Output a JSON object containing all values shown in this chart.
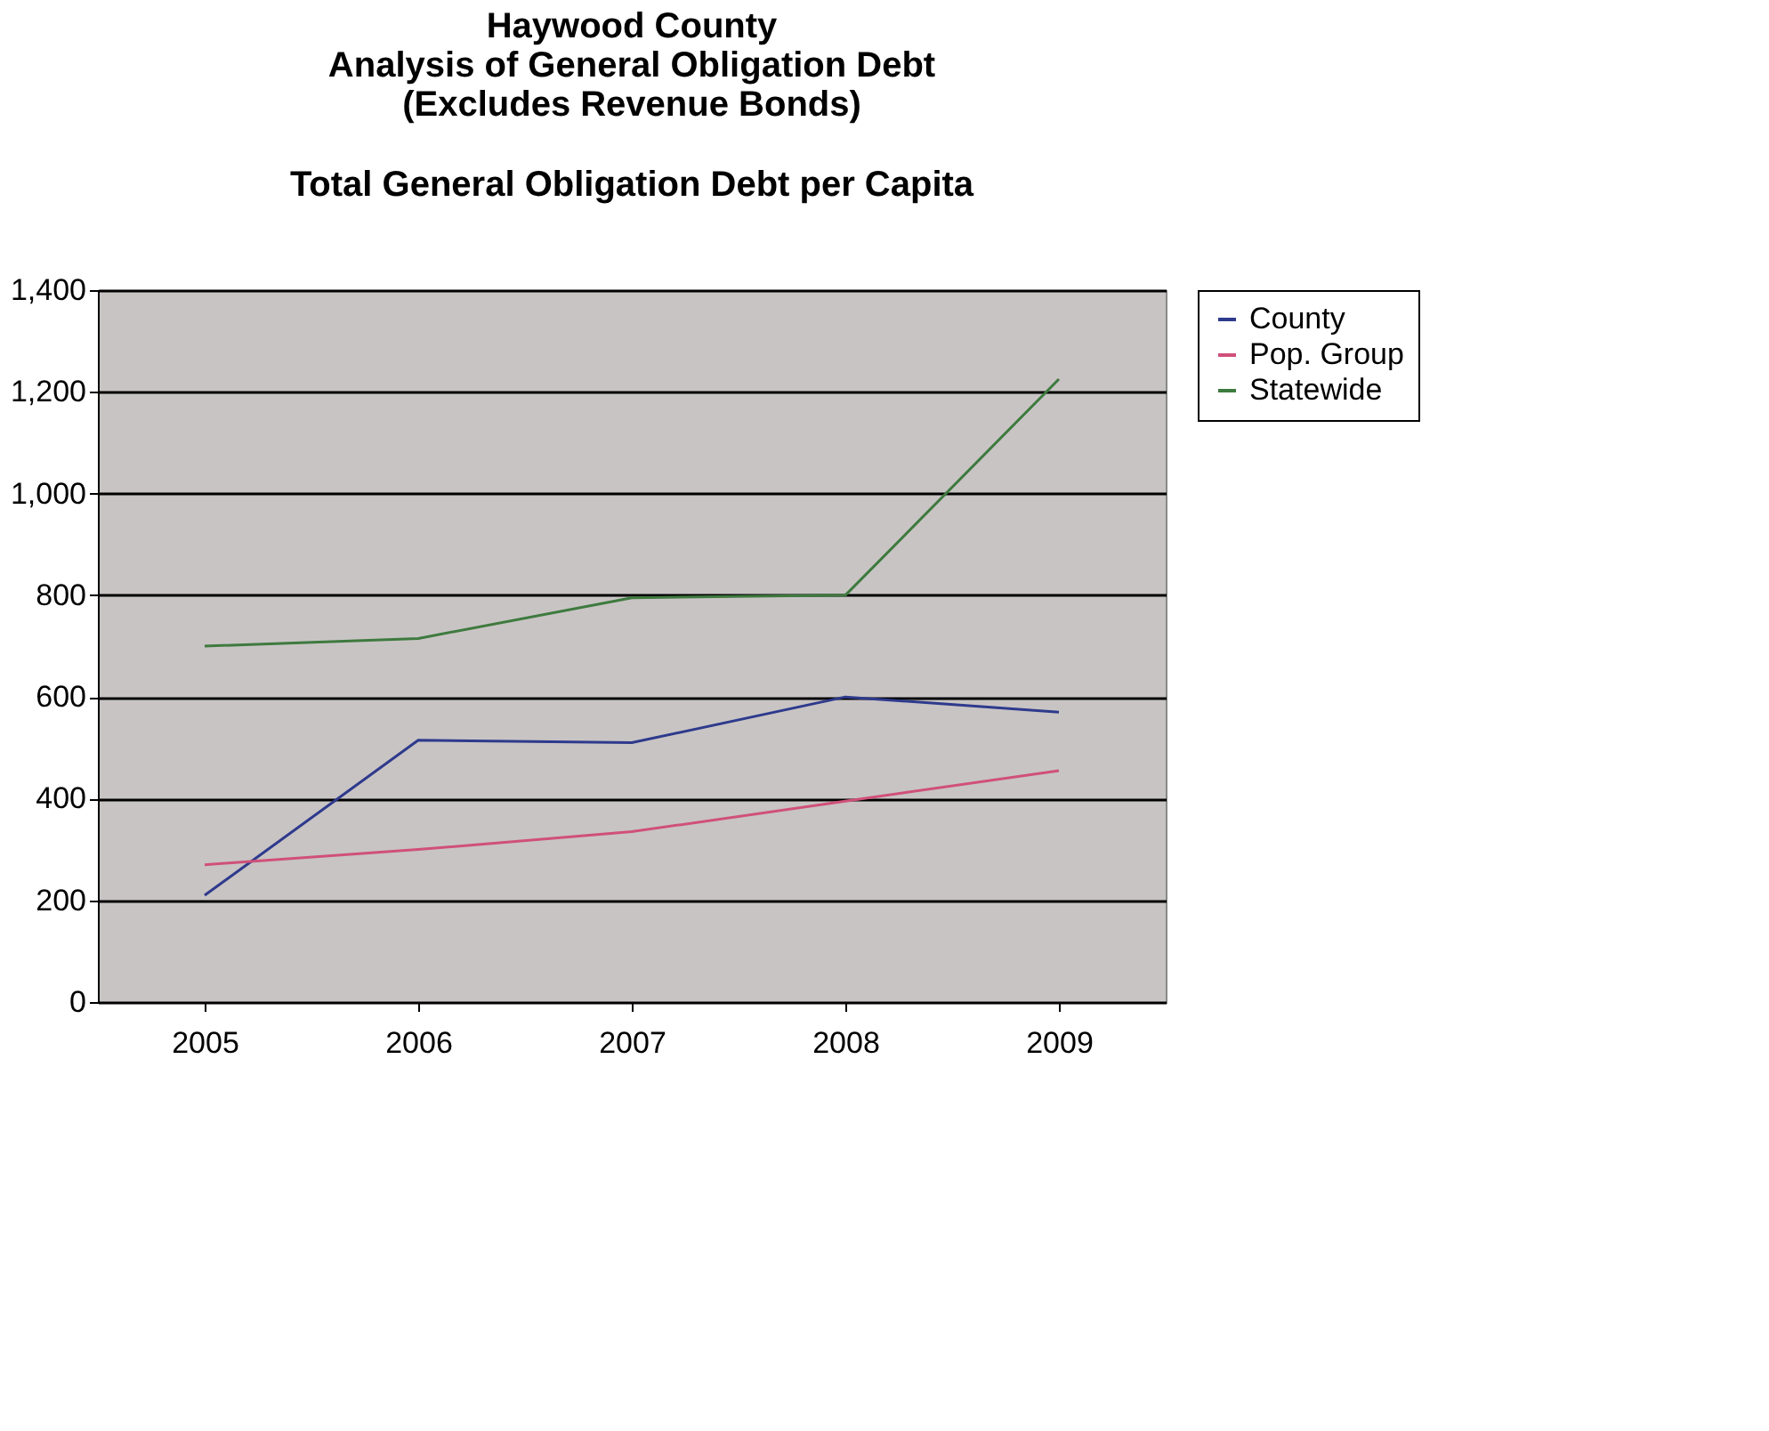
{
  "chart_data": {
    "type": "line",
    "title": [
      "Haywood County",
      "Analysis of General Obligation Debt",
      "(Excludes Revenue Bonds)"
    ],
    "subtitle": "Total General Obligation Debt per Capita",
    "categories": [
      "2005",
      "2006",
      "2007",
      "2008",
      "2009"
    ],
    "series": [
      {
        "name": "County",
        "color": "#2e3a8c",
        "values": [
          210,
          515,
          510,
          600,
          570
        ]
      },
      {
        "name": "Pop. Group",
        "color": "#d0507a",
        "values": [
          270,
          300,
          335,
          395,
          455
        ]
      },
      {
        "name": "Statewide",
        "color": "#3e7a3e",
        "values": [
          700,
          715,
          795,
          800,
          1225
        ]
      }
    ],
    "ylim": [
      0,
      1400
    ],
    "yticks": [
      {
        "value": 0,
        "label": "0"
      },
      {
        "value": 200,
        "label": "200"
      },
      {
        "value": 400,
        "label": "400"
      },
      {
        "value": 600,
        "label": "600"
      },
      {
        "value": 800,
        "label": "800"
      },
      {
        "value": 1000,
        "label": "1,000"
      },
      {
        "value": 1200,
        "label": "1,200"
      },
      {
        "value": 1400,
        "label": "1,400"
      }
    ],
    "grid": "y",
    "legend": "right",
    "marker": "none",
    "line_style": "solid"
  }
}
